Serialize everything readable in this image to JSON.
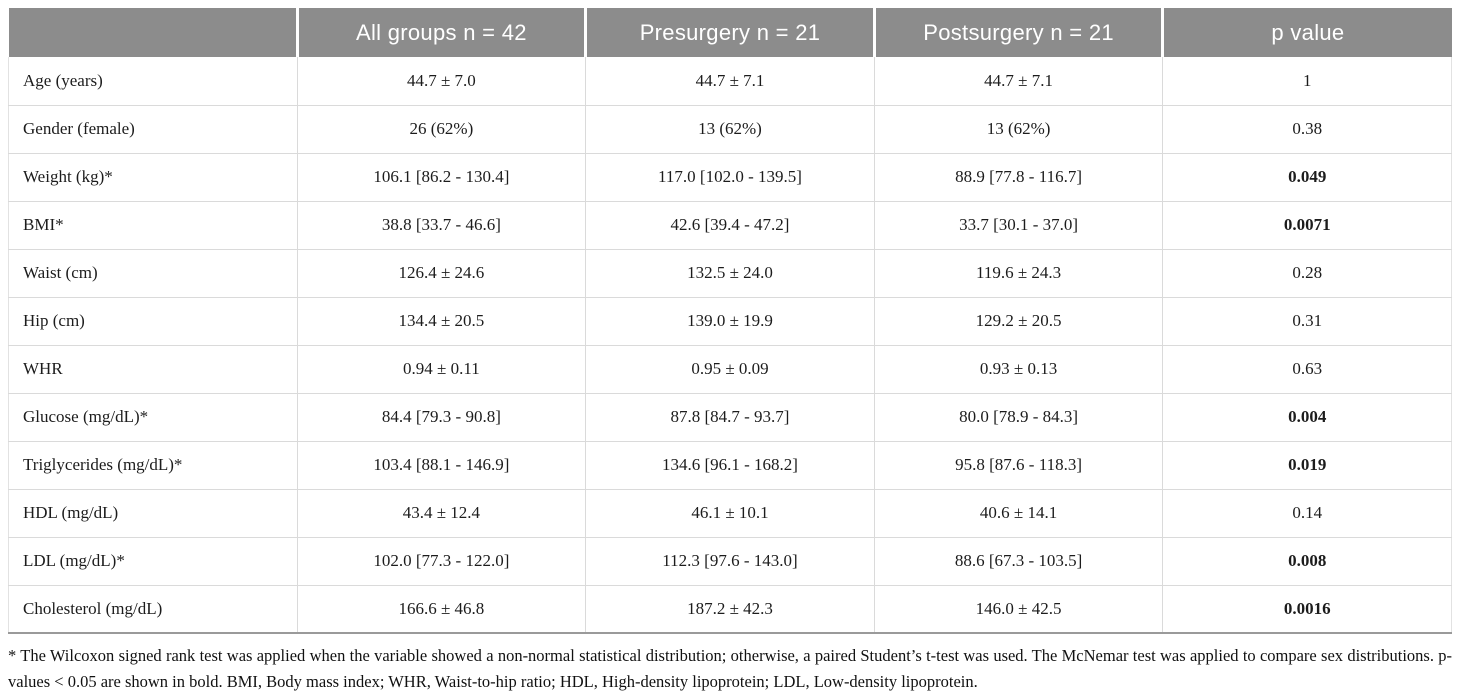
{
  "table": {
    "columns": [
      "",
      "All groups n = 42",
      "Presurgery n = 21",
      "Postsurgery n = 21",
      "p value"
    ],
    "rows": [
      {
        "label": "Age (years)",
        "all_groups": "44.7 ± 7.0",
        "presurgery": "44.7 ± 7.1",
        "postsurgery": "44.7 ± 7.1",
        "p_value": "1",
        "p_bold": false
      },
      {
        "label": "Gender (female)",
        "all_groups": "26 (62%)",
        "presurgery": "13 (62%)",
        "postsurgery": "13 (62%)",
        "p_value": "0.38",
        "p_bold": false
      },
      {
        "label": "Weight (kg)*",
        "all_groups": "106.1 [86.2 - 130.4]",
        "presurgery": "117.0 [102.0 - 139.5]",
        "postsurgery": "88.9 [77.8 - 116.7]",
        "p_value": "0.049",
        "p_bold": true
      },
      {
        "label": "BMI*",
        "all_groups": "38.8 [33.7 - 46.6]",
        "presurgery": "42.6 [39.4 - 47.2]",
        "postsurgery": "33.7 [30.1 - 37.0]",
        "p_value": "0.0071",
        "p_bold": true
      },
      {
        "label": "Waist (cm)",
        "all_groups": "126.4 ± 24.6",
        "presurgery": "132.5 ± 24.0",
        "postsurgery": "119.6 ± 24.3",
        "p_value": "0.28",
        "p_bold": false
      },
      {
        "label": "Hip (cm)",
        "all_groups": "134.4 ± 20.5",
        "presurgery": "139.0 ± 19.9",
        "postsurgery": "129.2 ± 20.5",
        "p_value": "0.31",
        "p_bold": false
      },
      {
        "label": "WHR",
        "all_groups": "0.94 ± 0.11",
        "presurgery": "0.95 ± 0.09",
        "postsurgery": "0.93 ± 0.13",
        "p_value": "0.63",
        "p_bold": false
      },
      {
        "label": "Glucose (mg/dL)*",
        "all_groups": "84.4 [79.3 - 90.8]",
        "presurgery": "87.8 [84.7 - 93.7]",
        "postsurgery": "80.0 [78.9 - 84.3]",
        "p_value": "0.004",
        "p_bold": true
      },
      {
        "label": "Triglycerides (mg/dL)*",
        "all_groups": "103.4 [88.1 - 146.9]",
        "presurgery": "134.6 [96.1 - 168.2]",
        "postsurgery": "95.8 [87.6 - 118.3]",
        "p_value": "0.019",
        "p_bold": true
      },
      {
        "label": "HDL (mg/dL)",
        "all_groups": "43.4 ± 12.4",
        "presurgery": "46.1 ± 10.1",
        "postsurgery": "40.6 ± 14.1",
        "p_value": "0.14",
        "p_bold": false
      },
      {
        "label": "LDL (mg/dL)*",
        "all_groups": "102.0 [77.3 - 122.0]",
        "presurgery": "112.3 [97.6 - 143.0]",
        "postsurgery": "88.6 [67.3 - 103.5]",
        "p_value": "0.008",
        "p_bold": true
      },
      {
        "label": "Cholesterol (mg/dL)",
        "all_groups": "166.6 ± 46.8",
        "presurgery": "187.2 ± 42.3",
        "postsurgery": "146.0 ± 42.5",
        "p_value": "0.0016",
        "p_bold": true
      }
    ]
  },
  "footnote": "* The Wilcoxon signed rank test was applied when the variable showed a non-normal statistical distribution; otherwise, a paired Student’s t-test was used. The McNemar test was applied to compare sex distributions. p-values < 0.05 are shown in bold. BMI, Body mass index; WHR, Waist-to-hip ratio; HDL, High-density lipoprotein; LDL, Low-density lipoprotein.",
  "colors": {
    "header_background": "#8c8c8c",
    "header_text": "#ffffff",
    "body_text": "#1c1c1c",
    "cell_border": "#dadada",
    "table_bottom_border": "#9a9a9a"
  }
}
